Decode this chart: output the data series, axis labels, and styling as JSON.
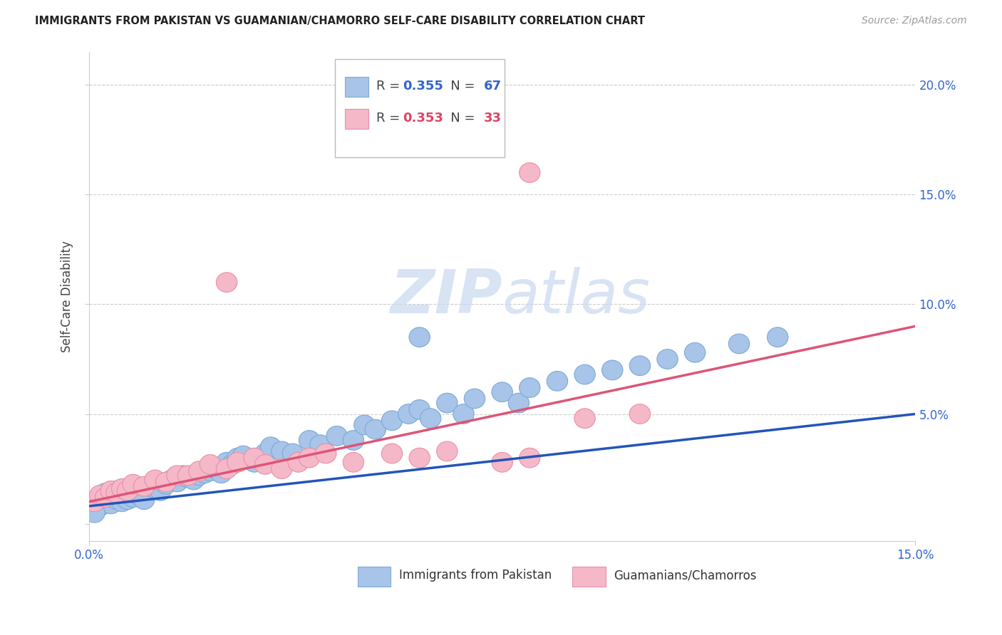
{
  "title": "IMMIGRANTS FROM PAKISTAN VS GUAMANIAN/CHAMORRO SELF-CARE DISABILITY CORRELATION CHART",
  "source": "Source: ZipAtlas.com",
  "ylabel": "Self-Care Disability",
  "xmin": 0.0,
  "xmax": 0.15,
  "ymin": -0.008,
  "ymax": 0.215,
  "legend1_r": "0.355",
  "legend1_n": "67",
  "legend2_r": "0.353",
  "legend2_n": "33",
  "blue_scatter_color": "#a8c4e8",
  "blue_edge_color": "#7aaad8",
  "pink_scatter_color": "#f5b8c8",
  "pink_edge_color": "#e890a8",
  "blue_line_color": "#2255bb",
  "pink_line_color": "#dd5577",
  "blue_text_color": "#3366cc",
  "pink_text_color": "#dd4466",
  "title_color": "#222222",
  "source_color": "#999999",
  "tick_color": "#3366cc",
  "grid_color": "#cccccc",
  "watermark_color": "#c8d8f0",
  "blue_line_y0": 0.008,
  "blue_line_y1": 0.05,
  "pink_line_y0": 0.01,
  "pink_line_y1": 0.09,
  "blue_x": [
    0.001,
    0.002,
    0.002,
    0.003,
    0.003,
    0.004,
    0.004,
    0.005,
    0.005,
    0.006,
    0.006,
    0.007,
    0.007,
    0.008,
    0.008,
    0.009,
    0.01,
    0.01,
    0.011,
    0.012,
    0.013,
    0.014,
    0.015,
    0.016,
    0.017,
    0.018,
    0.019,
    0.02,
    0.021,
    0.022,
    0.023,
    0.024,
    0.025,
    0.026,
    0.027,
    0.028,
    0.03,
    0.032,
    0.033,
    0.035,
    0.037,
    0.04,
    0.042,
    0.045,
    0.048,
    0.05,
    0.052,
    0.055,
    0.058,
    0.06,
    0.062,
    0.065,
    0.068,
    0.07,
    0.075,
    0.078,
    0.08,
    0.085,
    0.09,
    0.095,
    0.1,
    0.105,
    0.11,
    0.118,
    0.125,
    0.001,
    0.06
  ],
  "blue_y": [
    0.01,
    0.012,
    0.008,
    0.014,
    0.01,
    0.012,
    0.009,
    0.015,
    0.011,
    0.013,
    0.01,
    0.014,
    0.011,
    0.016,
    0.012,
    0.013,
    0.015,
    0.011,
    0.017,
    0.016,
    0.015,
    0.018,
    0.02,
    0.019,
    0.022,
    0.021,
    0.02,
    0.022,
    0.023,
    0.024,
    0.025,
    0.023,
    0.028,
    0.027,
    0.03,
    0.031,
    0.028,
    0.032,
    0.035,
    0.033,
    0.032,
    0.038,
    0.036,
    0.04,
    0.038,
    0.045,
    0.043,
    0.047,
    0.05,
    0.052,
    0.048,
    0.055,
    0.05,
    0.057,
    0.06,
    0.055,
    0.062,
    0.065,
    0.068,
    0.07,
    0.072,
    0.075,
    0.078,
    0.082,
    0.085,
    0.005,
    0.085
  ],
  "pink_x": [
    0.001,
    0.002,
    0.003,
    0.004,
    0.005,
    0.006,
    0.007,
    0.008,
    0.01,
    0.012,
    0.014,
    0.016,
    0.018,
    0.02,
    0.022,
    0.025,
    0.027,
    0.03,
    0.032,
    0.035,
    0.038,
    0.04,
    0.043,
    0.048,
    0.055,
    0.06,
    0.065,
    0.075,
    0.08,
    0.09,
    0.1,
    0.025,
    0.08
  ],
  "pink_y": [
    0.01,
    0.013,
    0.012,
    0.015,
    0.014,
    0.016,
    0.015,
    0.018,
    0.017,
    0.02,
    0.019,
    0.022,
    0.022,
    0.024,
    0.027,
    0.025,
    0.028,
    0.03,
    0.027,
    0.025,
    0.028,
    0.03,
    0.032,
    0.028,
    0.032,
    0.03,
    0.033,
    0.028,
    0.03,
    0.048,
    0.05,
    0.11,
    0.16
  ]
}
